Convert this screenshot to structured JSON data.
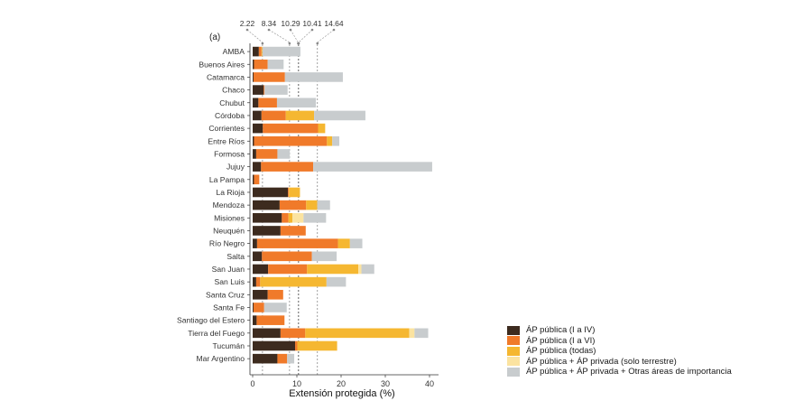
{
  "chart_data": {
    "type": "bar",
    "orientation": "horizontal",
    "stacked": true,
    "panel_label": "(a)",
    "xlabel": "Extensión protegida (%)",
    "ylabel": "",
    "xlim": [
      0,
      42
    ],
    "xticks": [
      0,
      10,
      20,
      30,
      40
    ],
    "grid": false,
    "legend_position": "bottom-right",
    "categories": [
      "AMBA",
      "Buenos Aires",
      "Catamarca",
      "Chaco",
      "Chubut",
      "Córdoba",
      "Corrientes",
      "Entre Ríos",
      "Formosa",
      "Jujuy",
      "La Pampa",
      "La Rioja",
      "Mendoza",
      "Misiones",
      "Neuquén",
      "Río Negro",
      "Salta",
      "San Juan",
      "San Luis",
      "Santa Cruz",
      "Santa Fe",
      "Santiago del Estero",
      "Tierra del Fuego",
      "Tucumán",
      "Mar Argentino"
    ],
    "series": [
      {
        "name": "ÁP pública (I a IV)",
        "color": "#3d2b1f",
        "values": [
          1.4,
          0.3,
          0.2,
          2.5,
          1.3,
          2.0,
          2.3,
          0.3,
          0.8,
          1.9,
          0.3,
          8.0,
          6.1,
          6.6,
          6.3,
          1.0,
          2.1,
          3.5,
          0.8,
          3.4,
          0.2,
          0.9,
          6.3,
          9.6,
          5.6
        ]
      },
      {
        "name": "ÁP pública (I a VI)",
        "color": "#f07a2a",
        "values": [
          0.6,
          3.1,
          7.1,
          0.2,
          4.2,
          5.5,
          12.5,
          16.5,
          4.8,
          11.8,
          1.2,
          0.2,
          6.0,
          1.5,
          5.7,
          18.3,
          11.3,
          8.8,
          0.9,
          3.5,
          2.4,
          6.3,
          5.6,
          0.5,
          2.2
        ]
      },
      {
        "name": "ÁP pública (todas)",
        "color": "#f5b731",
        "values": [
          0.2,
          0,
          0,
          0,
          0,
          6.4,
          1.6,
          1.2,
          0,
          0,
          0,
          2.5,
          2.5,
          0.9,
          0,
          2.7,
          0,
          11.6,
          15.0,
          0,
          0,
          0,
          23.5,
          9.0,
          0
        ]
      },
      {
        "name": "ÁP pública + ÁP privada (solo terrestre)",
        "color": "#fbe3a0",
        "values": [
          0,
          0,
          0,
          0,
          0,
          0,
          0,
          0,
          0,
          0,
          0,
          0,
          0,
          2.5,
          0,
          0,
          0,
          0.7,
          0,
          0,
          0,
          0,
          1.2,
          0,
          0
        ]
      },
      {
        "name": "ÁP pública + ÁP privada + Otras áreas de importancia",
        "color": "#c8ccce",
        "values": [
          8.6,
          3.6,
          13.1,
          5.2,
          8.8,
          11.6,
          0,
          1.6,
          2.8,
          26.9,
          0,
          0,
          2.9,
          5.1,
          0,
          2.8,
          5.6,
          2.9,
          4.4,
          0,
          5.1,
          0,
          3.1,
          0,
          1.6
        ]
      }
    ],
    "reference_lines": [
      {
        "label": "2.22",
        "x": 2.22
      },
      {
        "label": "8.34",
        "x": 8.34
      },
      {
        "label": "10.29",
        "x": 10.29
      },
      {
        "label": "10.41",
        "x": 10.41
      },
      {
        "label": "14.64",
        "x": 14.64
      }
    ]
  }
}
